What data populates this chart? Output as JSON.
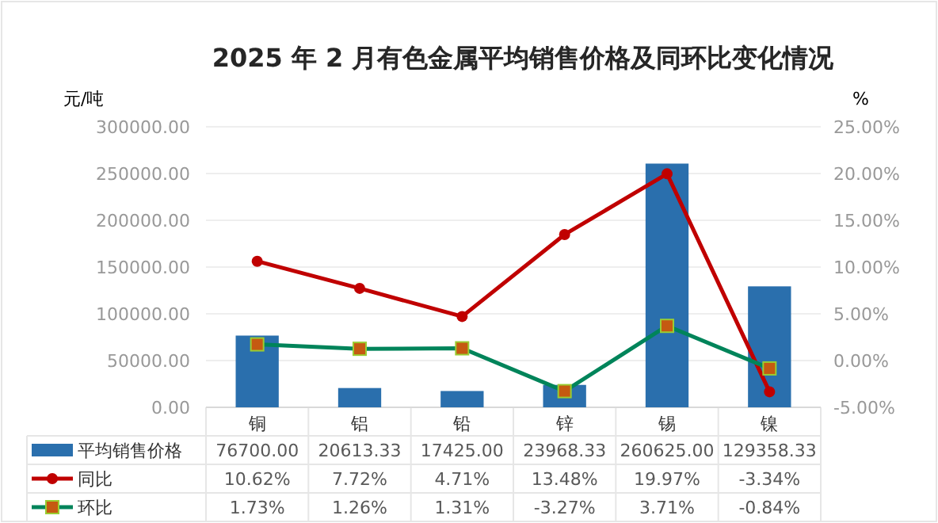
{
  "chart_data": {
    "type": "bar",
    "title": "2025 年 2 月有色金属平均销售价格及同环比变化情况",
    "ylabel": "元/吨",
    "y2label": "%",
    "categories": [
      "铜",
      "铝",
      "铅",
      "锌",
      "锡",
      "镍"
    ],
    "series": [
      {
        "name": "平均销售价格",
        "color": "#2a6fad",
        "values": [
          76700.0,
          20613.33,
          17425.0,
          23968.33,
          260625.0,
          129358.33
        ],
        "value_labels": [
          "76700.00",
          "20613.33",
          "17425.00",
          "23968.33",
          "260625.00",
          "129358.33"
        ]
      },
      {
        "name": "同比",
        "type": "line",
        "axis": "y2",
        "color": "#c00000",
        "marker": "circle",
        "values": [
          10.62,
          7.72,
          4.71,
          13.48,
          19.97,
          -3.34
        ],
        "value_labels": [
          "10.62%",
          "7.72%",
          "4.71%",
          "13.48%",
          "19.97%",
          "-3.34%"
        ]
      },
      {
        "name": "环比",
        "type": "line",
        "axis": "y2",
        "color": "#00845a",
        "marker": "square",
        "values": [
          1.73,
          1.26,
          1.31,
          -3.27,
          3.71,
          -0.84
        ],
        "value_labels": [
          "1.73%",
          "1.26%",
          "1.31%",
          "-3.27%",
          "3.71%",
          "-0.84%"
        ]
      }
    ],
    "ylim": [
      0,
      300000
    ],
    "yticks": [
      {
        "value": 0,
        "label": "0.00"
      },
      {
        "value": 50000,
        "label": "50000.00"
      },
      {
        "value": 100000,
        "label": "100000.00"
      },
      {
        "value": 150000,
        "label": "150000.00"
      },
      {
        "value": 200000,
        "label": "200000.00"
      },
      {
        "value": 250000,
        "label": "250000.00"
      },
      {
        "value": 300000,
        "label": "300000.00"
      }
    ],
    "y2lim": [
      -5,
      25
    ],
    "y2ticks": [
      {
        "value": -5,
        "label": "-5.00%"
      },
      {
        "value": 0,
        "label": "0.00%"
      },
      {
        "value": 5,
        "label": "5.00%"
      },
      {
        "value": 10,
        "label": "10.00%"
      },
      {
        "value": 15,
        "label": "15.00%"
      },
      {
        "value": 20,
        "label": "20.00%"
      },
      {
        "value": 25,
        "label": "25.00%"
      }
    ],
    "grid": "y",
    "legend": "bottom"
  }
}
